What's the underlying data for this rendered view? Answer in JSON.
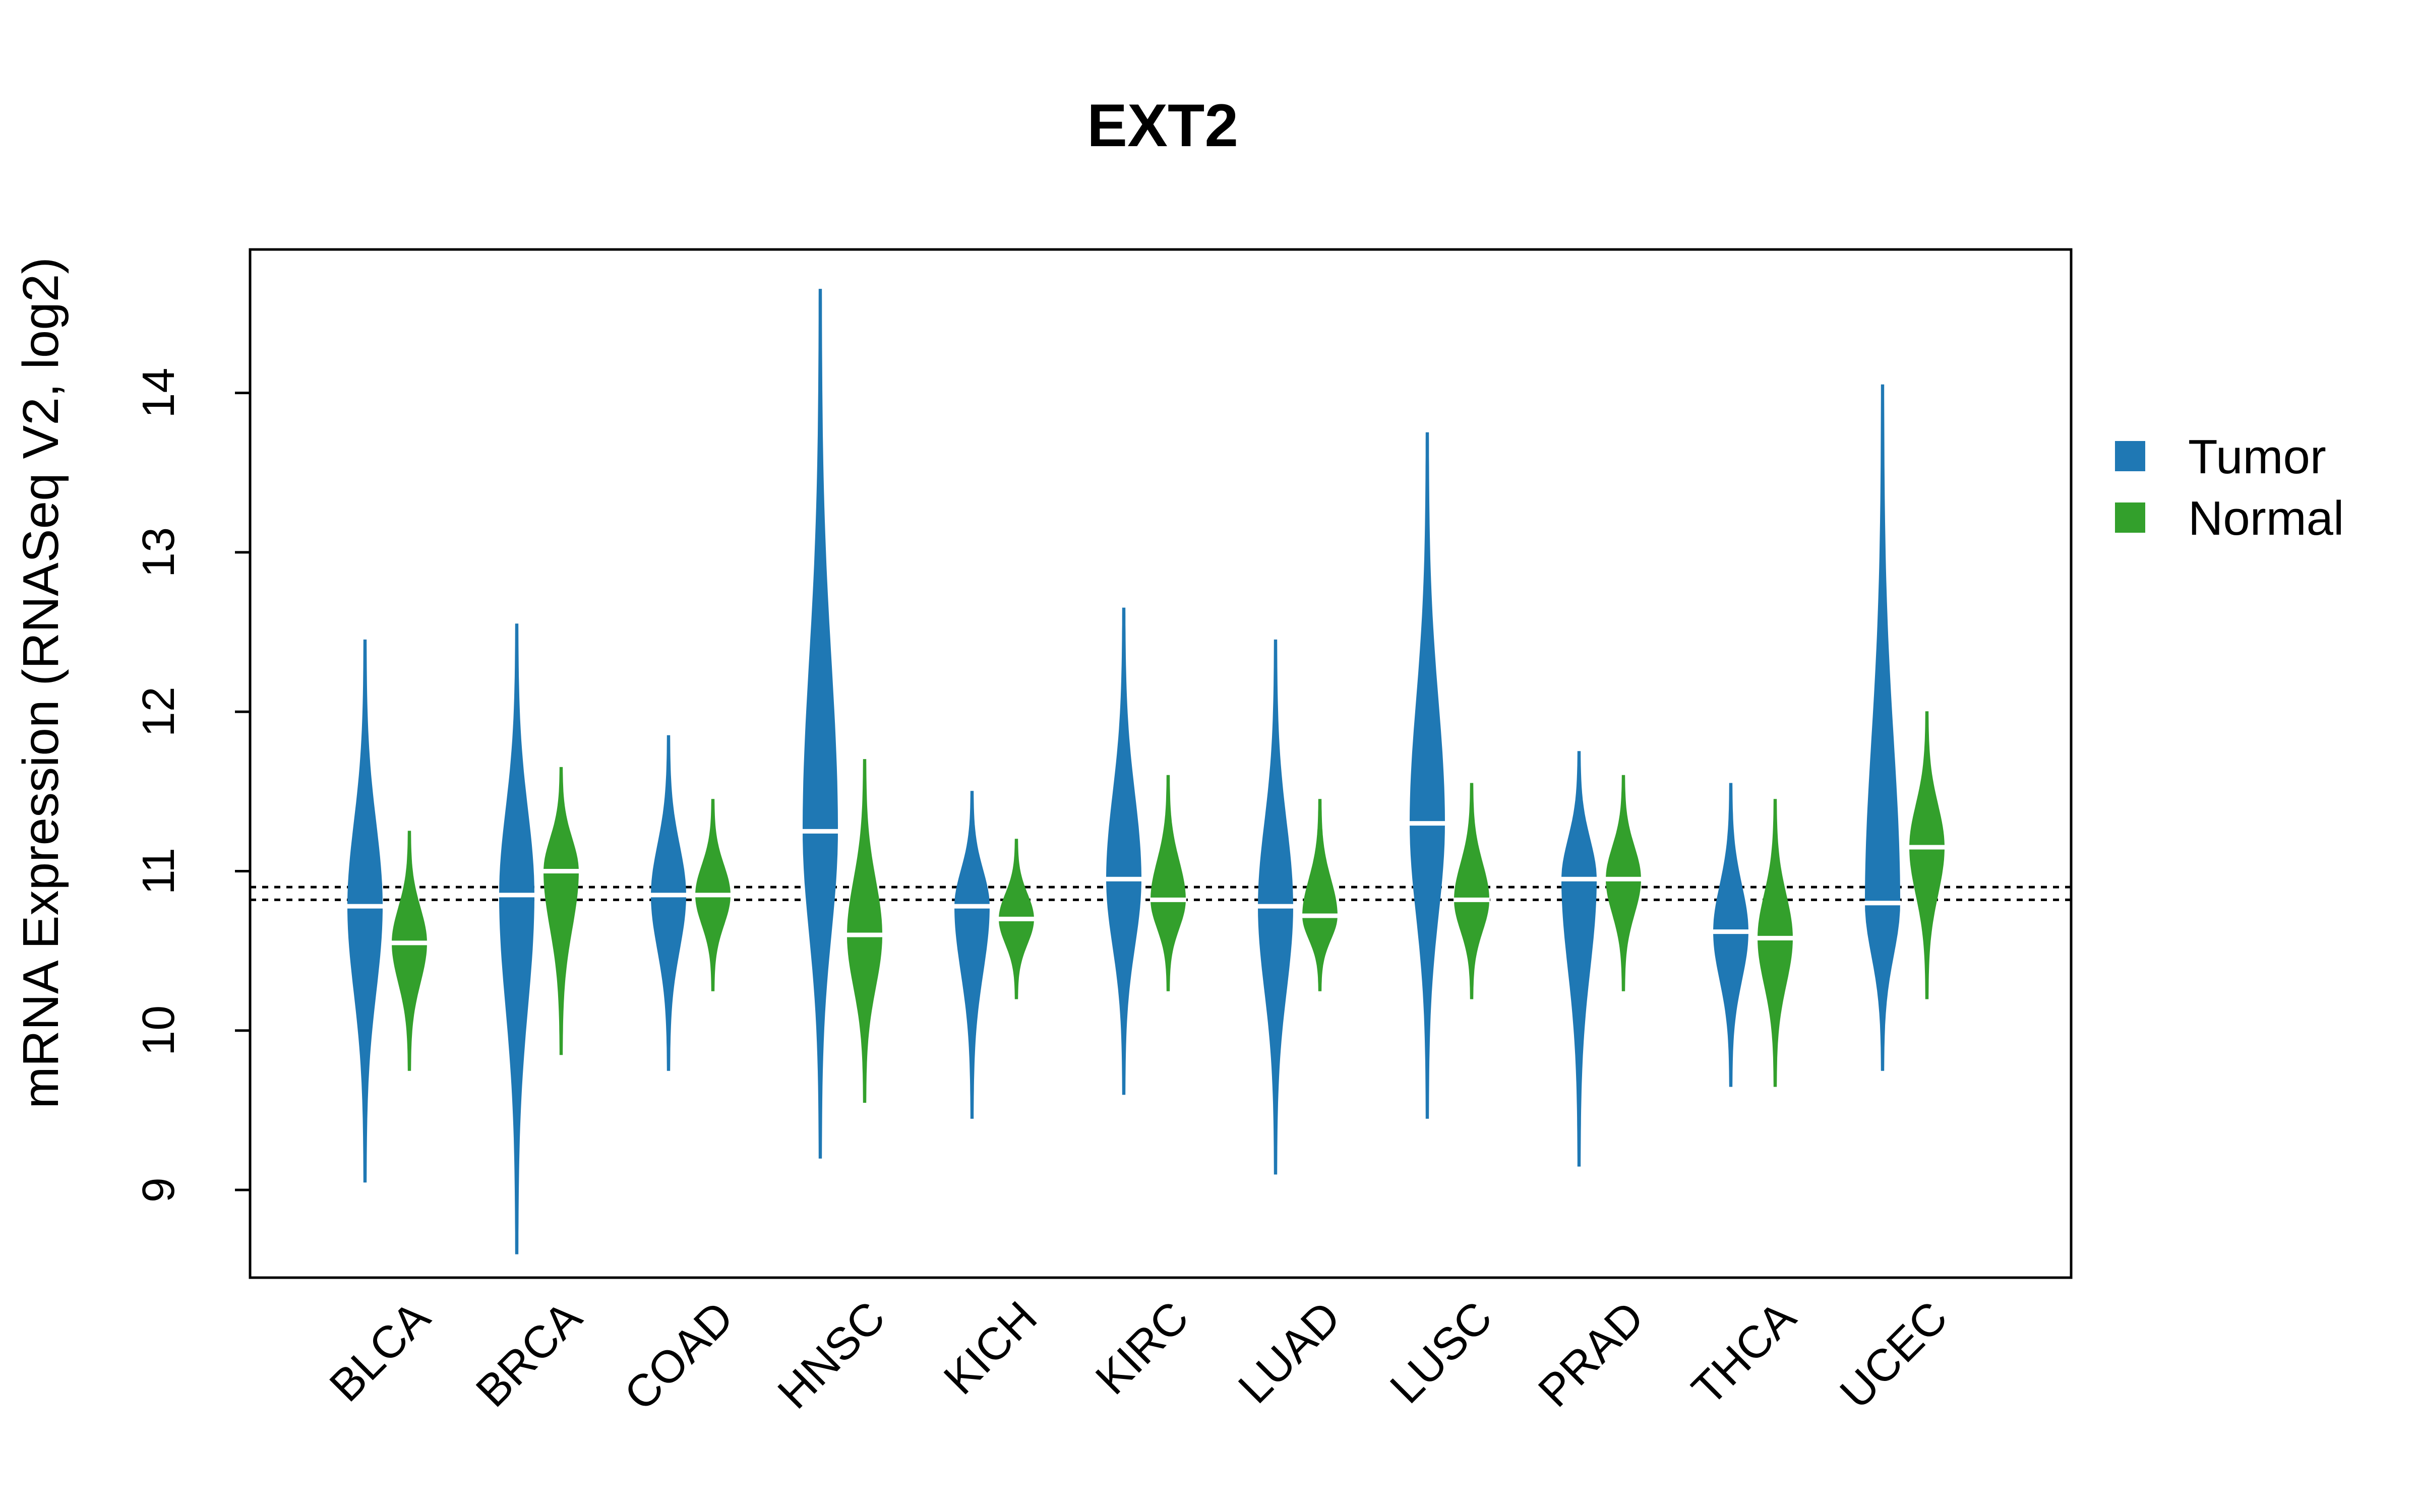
{
  "chart_data": {
    "type": "violin",
    "title": "EXT2",
    "xlabel": "",
    "ylabel": "mRNA Expression (RNASeq V2, log2)",
    "ylim": [
      8.45,
      14.9
    ],
    "yticks": [
      "9",
      "10",
      "11",
      "12",
      "13",
      "14"
    ],
    "reference_lines": [
      10.82,
      10.9
    ],
    "legend_position": "right",
    "categories": [
      "BLCA",
      "BRCA",
      "COAD",
      "HNSC",
      "KICH",
      "KIRC",
      "LUAD",
      "LUSC",
      "PRAD",
      "THCA",
      "UCEC"
    ],
    "series": [
      {
        "name": "Tumor",
        "color": "#1F78B4",
        "medians": [
          10.78,
          10.85,
          10.85,
          11.25,
          10.78,
          10.95,
          10.78,
          11.3,
          10.95,
          10.62,
          10.8
        ],
        "ranges": [
          [
            9.05,
            12.45
          ],
          [
            8.6,
            12.55
          ],
          [
            9.75,
            11.85
          ],
          [
            9.2,
            14.65
          ],
          [
            9.45,
            11.5
          ],
          [
            9.6,
            12.65
          ],
          [
            9.1,
            12.45
          ],
          [
            9.45,
            13.75
          ],
          [
            9.15,
            11.75
          ],
          [
            9.65,
            11.55
          ],
          [
            9.75,
            14.05
          ]
        ]
      },
      {
        "name": "Normal",
        "color": "#33A02C",
        "medians": [
          10.55,
          11.0,
          10.85,
          10.6,
          10.7,
          10.82,
          10.72,
          10.82,
          10.95,
          10.58,
          11.15
        ],
        "ranges": [
          [
            9.75,
            11.25
          ],
          [
            9.85,
            11.65
          ],
          [
            10.25,
            11.45
          ],
          [
            9.55,
            11.7
          ],
          [
            10.2,
            11.2
          ],
          [
            10.25,
            11.6
          ],
          [
            10.25,
            11.45
          ],
          [
            10.2,
            11.55
          ],
          [
            10.25,
            11.6
          ],
          [
            9.65,
            11.45
          ],
          [
            10.2,
            12.0
          ]
        ]
      }
    ]
  }
}
